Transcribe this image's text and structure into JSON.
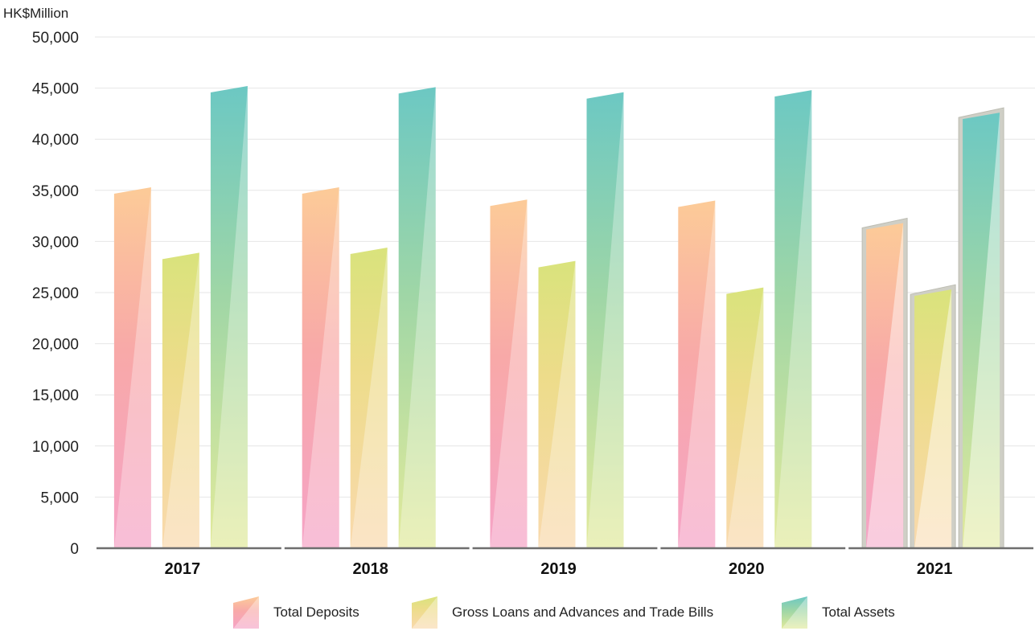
{
  "colors": {
    "deposits": [
      "#f7a8c6",
      "#f9c998"
    ],
    "loans": [
      "#f7d9b0",
      "#dce37f"
    ],
    "assets": [
      "#dcea9a",
      "#6ec9c2"
    ]
  },
  "chart_data": {
    "type": "bar",
    "ylabel": "HK$Million",
    "ylim": [
      0,
      50000
    ],
    "yticks": [
      "0",
      "5,000",
      "10,000",
      "15,000",
      "20,000",
      "25,000",
      "30,000",
      "35,000",
      "40,000",
      "45,000",
      "50,000"
    ],
    "grid": true,
    "legend_position": "bottom",
    "categories": [
      "2017",
      "2018",
      "2019",
      "2020",
      "2021"
    ],
    "highlighted_category": "2021",
    "series": [
      {
        "name": "Total Deposits",
        "key": "deposits",
        "values": [
          35300,
          35300,
          34100,
          34000,
          31800
        ]
      },
      {
        "name": "Gross Loans and Advances and Trade Bills",
        "key": "loans",
        "values": [
          28900,
          29400,
          28100,
          25500,
          25300
        ]
      },
      {
        "name": "Total Assets",
        "key": "assets",
        "values": [
          45200,
          45100,
          44600,
          44800,
          42600
        ]
      }
    ]
  }
}
